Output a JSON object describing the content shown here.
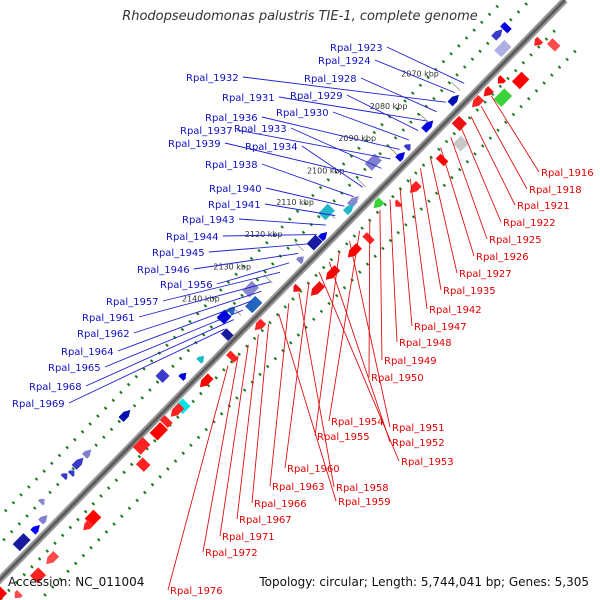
{
  "header": {
    "title": "Rhodopseudomonas palustris TIE-1, complete genome"
  },
  "footer": {
    "accession": "Accession: NC_011004",
    "summary": "Topology: circular; Length: 5,744,041 bp; Genes: 5,305"
  },
  "colors": {
    "plus_label": "#1010c0",
    "minus_label": "#e00000",
    "backbone": "#777777",
    "gc_tick": "#1a7a1a"
  },
  "ruler": [
    "2070 kbp",
    "2080 kbp",
    "2090 kbp",
    "2100 kbp",
    "2110 kbp",
    "2120 kbp",
    "2130 kbp",
    "2140 kbp"
  ],
  "plus_labels": [
    "Rpal_1923",
    "Rpal_1924",
    "Rpal_1932",
    "Rpal_1928",
    "Rpal_1931",
    "Rpal_1929",
    "Rpal_1930",
    "Rpal_1936",
    "Rpal_1937",
    "Rpal_1933",
    "Rpal_1939",
    "Rpal_1934",
    "Rpal_1938",
    "Rpal_1940",
    "Rpal_1941",
    "Rpal_1943",
    "Rpal_1944",
    "Rpal_1945",
    "Rpal_1946",
    "Rpal_1956",
    "Rpal_1957",
    "Rpal_1961",
    "Rpal_1962",
    "Rpal_1964",
    "Rpal_1965",
    "Rpal_1968",
    "Rpal_1969"
  ],
  "minus_labels": [
    "Rpal_1916",
    "Rpal_1918",
    "Rpal_1921",
    "Rpal_1922",
    "Rpal_1925",
    "Rpal_1926",
    "Rpal_1927",
    "Rpal_1935",
    "Rpal_1942",
    "Rpal_1947",
    "Rpal_1948",
    "Rpal_1949",
    "Rpal_1950",
    "Rpal_1954",
    "Rpal_1951",
    "Rpal_1955",
    "Rpal_1952",
    "Rpal_1953",
    "Rpal_1960",
    "Rpal_1958",
    "Rpal_1963",
    "Rpal_1959",
    "Rpal_1966",
    "Rpal_1967",
    "Rpal_1971",
    "Rpal_1972",
    "Rpal_1976"
  ]
}
